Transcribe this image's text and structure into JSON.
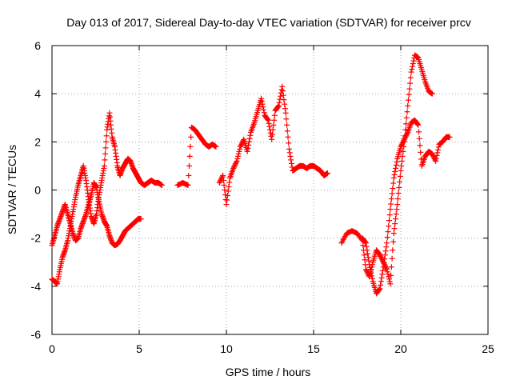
{
  "chart_data": {
    "type": "scatter",
    "title": "Day 013 of 2017, Sidereal Day-to-day VTEC variation (SDTVAR) for receiver prcv",
    "xlabel": "GPS time / hours",
    "ylabel": "SDTVAR / TECUs",
    "xlim": [
      0,
      25
    ],
    "ylim": [
      -6,
      6
    ],
    "xticks": [
      0,
      5,
      10,
      15,
      20,
      25
    ],
    "yticks": [
      -6,
      -4,
      -2,
      0,
      2,
      4,
      6
    ],
    "grid": true,
    "marker": "+",
    "color": "#ff0000",
    "series": [
      {
        "name": "segment-1a",
        "x": [
          0.0,
          0.15,
          0.3,
          0.45,
          0.6,
          0.75,
          0.9,
          1.05,
          1.2,
          1.35,
          1.5,
          1.65,
          1.8,
          1.95,
          2.1,
          2.25,
          2.4,
          2.55,
          2.7,
          2.85,
          3.0,
          3.15,
          3.3,
          3.45,
          3.6,
          3.75,
          3.9,
          4.05,
          4.2,
          4.35,
          4.5,
          4.65,
          4.8,
          4.95,
          5.1
        ],
        "y": [
          -2.3,
          -1.9,
          -1.5,
          -1.2,
          -0.9,
          -0.6,
          -1.0,
          -1.4,
          -1.8,
          -2.1,
          -2.0,
          -1.6,
          -1.3,
          -1.0,
          -0.6,
          -0.2,
          0.3,
          0.1,
          -0.5,
          -1.0,
          -1.3,
          -1.5,
          -1.9,
          -2.2,
          -2.3,
          -2.25,
          -2.1,
          -1.9,
          -1.7,
          -1.6,
          -1.5,
          -1.4,
          -1.3,
          -1.2,
          -1.2
        ]
      },
      {
        "name": "segment-1b",
        "x": [
          0.0,
          0.15,
          0.3,
          0.45,
          0.6,
          0.75,
          0.9,
          1.05,
          1.2,
          1.35,
          1.5,
          1.65,
          1.8,
          1.95,
          2.1,
          2.25,
          2.4,
          2.55,
          2.7,
          2.85,
          3.0,
          3.15,
          3.3,
          3.45,
          3.6,
          3.75,
          3.9,
          4.05,
          4.2,
          4.35,
          4.5,
          4.65,
          4.8,
          4.95,
          5.1,
          5.3,
          5.5,
          5.7,
          5.9,
          6.1,
          6.3
        ],
        "y": [
          -3.7,
          -3.8,
          -3.9,
          -3.3,
          -2.8,
          -2.5,
          -2.1,
          -1.5,
          -0.9,
          -0.3,
          0.2,
          0.6,
          1.0,
          0.4,
          -0.4,
          -1.1,
          -1.4,
          -1.0,
          -0.2,
          0.4,
          1.0,
          2.5,
          3.2,
          2.2,
          1.8,
          1.0,
          0.6,
          0.9,
          1.1,
          1.3,
          1.2,
          0.9,
          0.7,
          0.5,
          0.3,
          0.2,
          0.3,
          0.4,
          0.3,
          0.3,
          0.2
        ]
      },
      {
        "name": "segment-2",
        "x": [
          7.2,
          7.5,
          7.8,
          8.0,
          8.2,
          8.4,
          8.6,
          8.8,
          9.0,
          9.2,
          9.4
        ],
        "y": [
          0.2,
          0.3,
          0.2,
          2.6,
          2.5,
          2.3,
          2.1,
          1.9,
          1.8,
          1.9,
          1.8
        ]
      },
      {
        "name": "segment-3",
        "x": [
          9.6,
          9.8,
          10.0,
          10.2,
          10.4,
          10.6,
          10.8,
          11.0,
          11.2,
          11.4,
          11.6,
          11.8,
          12.0,
          12.2,
          12.4,
          12.6,
          12.8,
          13.0,
          13.2,
          13.4,
          13.6,
          13.8,
          14.0,
          14.2,
          14.4,
          14.6,
          14.8,
          15.0,
          15.2,
          15.4,
          15.6,
          15.8
        ],
        "y": [
          0.3,
          0.6,
          -0.6,
          0.5,
          0.9,
          1.2,
          1.8,
          2.1,
          1.6,
          2.4,
          2.8,
          3.3,
          3.8,
          3.1,
          2.9,
          2.1,
          3.3,
          3.5,
          4.3,
          3.2,
          1.7,
          0.8,
          0.9,
          1.0,
          1.0,
          0.9,
          1.0,
          1.0,
          0.9,
          0.8,
          0.6,
          0.7
        ]
      },
      {
        "name": "segment-4a",
        "x": [
          16.6,
          16.9,
          17.2,
          17.5,
          17.8,
          18.0,
          18.2,
          18.4,
          18.6,
          18.8,
          19.0,
          19.2,
          19.4,
          19.6,
          19.8,
          20.0,
          20.2,
          20.4,
          20.6,
          20.8,
          21.0,
          21.2,
          21.4,
          21.6,
          21.8
        ],
        "y": [
          -2.2,
          -1.8,
          -1.7,
          -1.8,
          -2.1,
          -3.3,
          -3.6,
          -3.0,
          -2.5,
          -2.7,
          -3.0,
          -3.3,
          -3.9,
          -1.8,
          -0.6,
          0.8,
          2.0,
          3.5,
          4.9,
          5.6,
          5.5,
          5.0,
          4.5,
          4.1,
          4.0
        ]
      },
      {
        "name": "segment-4b",
        "x": [
          17.8,
          18.0,
          18.2,
          18.4,
          18.6,
          18.8,
          19.0,
          19.2,
          19.4,
          19.6,
          19.8,
          20.0,
          20.2,
          20.4,
          20.6,
          20.8,
          21.0,
          21.2,
          21.4,
          21.6,
          21.8,
          22.0,
          22.2,
          22.4,
          22.6,
          22.8
        ],
        "y": [
          -2.0,
          -2.2,
          -3.1,
          -3.8,
          -4.3,
          -4.1,
          -3.2,
          -2.2,
          -0.8,
          0.5,
          1.3,
          1.8,
          2.1,
          2.4,
          2.8,
          2.9,
          2.7,
          1.0,
          1.4,
          1.6,
          1.5,
          1.2,
          1.9,
          2.0,
          2.2,
          2.2
        ]
      }
    ]
  }
}
